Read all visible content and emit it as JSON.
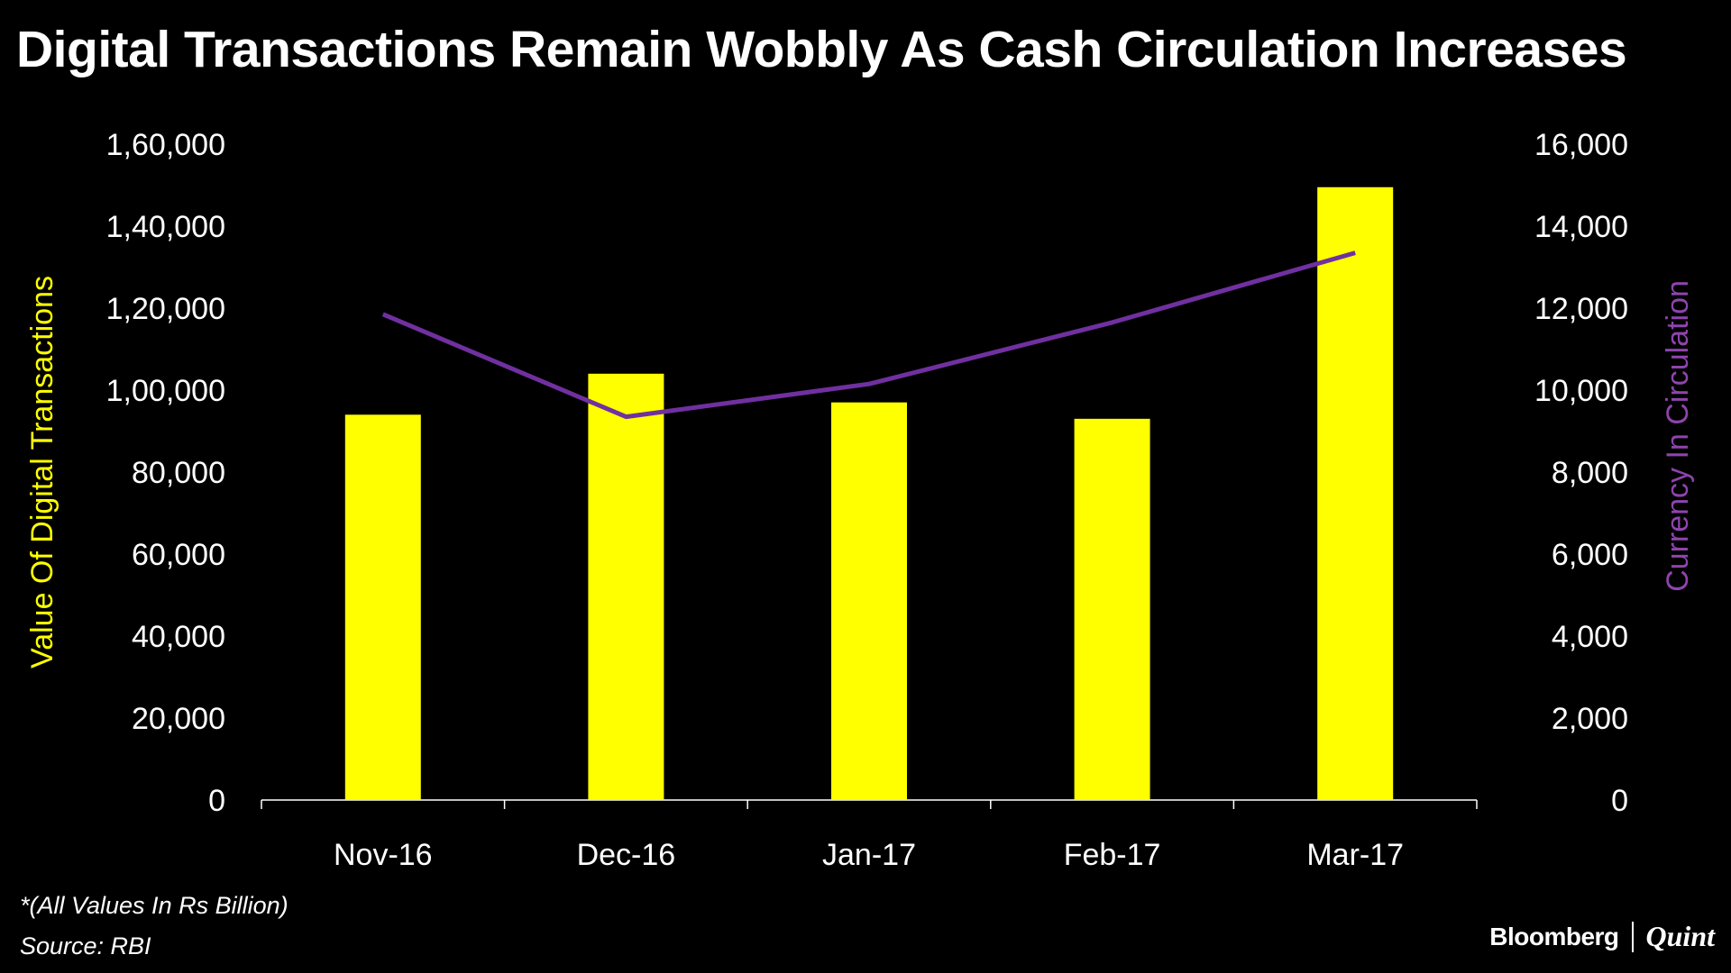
{
  "chart_data": {
    "type": "bar",
    "title": "Digital Transactions Remain Wobbly As Cash Circulation Increases",
    "categories": [
      "Nov-16",
      "Dec-16",
      "Jan-17",
      "Feb-17",
      "Mar-17"
    ],
    "series": [
      {
        "name": "Value Of Digital Transactions",
        "type": "bar",
        "axis": "left",
        "values": [
          94000,
          104000,
          97000,
          93000,
          149500
        ]
      },
      {
        "name": "Currency In Circulation",
        "type": "line",
        "axis": "right",
        "values": [
          11850,
          9350,
          10150,
          11650,
          13350
        ]
      }
    ],
    "y_left": {
      "label": "Value Of Digital Transactions",
      "range": [
        0,
        160000
      ],
      "ticks": [
        0,
        20000,
        40000,
        60000,
        80000,
        100000,
        120000,
        140000,
        160000
      ],
      "tick_labels": [
        "0",
        "20,000",
        "40,000",
        "60,000",
        "80,000",
        "1,00,000",
        "1,20,000",
        "1,40,000",
        "1,60,000"
      ]
    },
    "y_right": {
      "label": "Currency In Circulation",
      "range": [
        0,
        16000
      ],
      "ticks": [
        0,
        2000,
        4000,
        6000,
        8000,
        10000,
        12000,
        14000,
        16000
      ],
      "tick_labels": [
        "0",
        "2,000",
        "4,000",
        "6,000",
        "8,000",
        "10,000",
        "12,000",
        "14,000",
        "16,000"
      ]
    },
    "grid": false,
    "colors": {
      "bar": "#FFFF00",
      "line": "#7030A0",
      "left_axis_label": "#FFFF00",
      "right_axis_label": "#8E44AD",
      "axis": "#FFFFFF"
    }
  },
  "footnote": "*(All Values In Rs Billion)",
  "source": "Source: RBI",
  "brand": {
    "left": "Bloomberg",
    "right": "Quint"
  }
}
